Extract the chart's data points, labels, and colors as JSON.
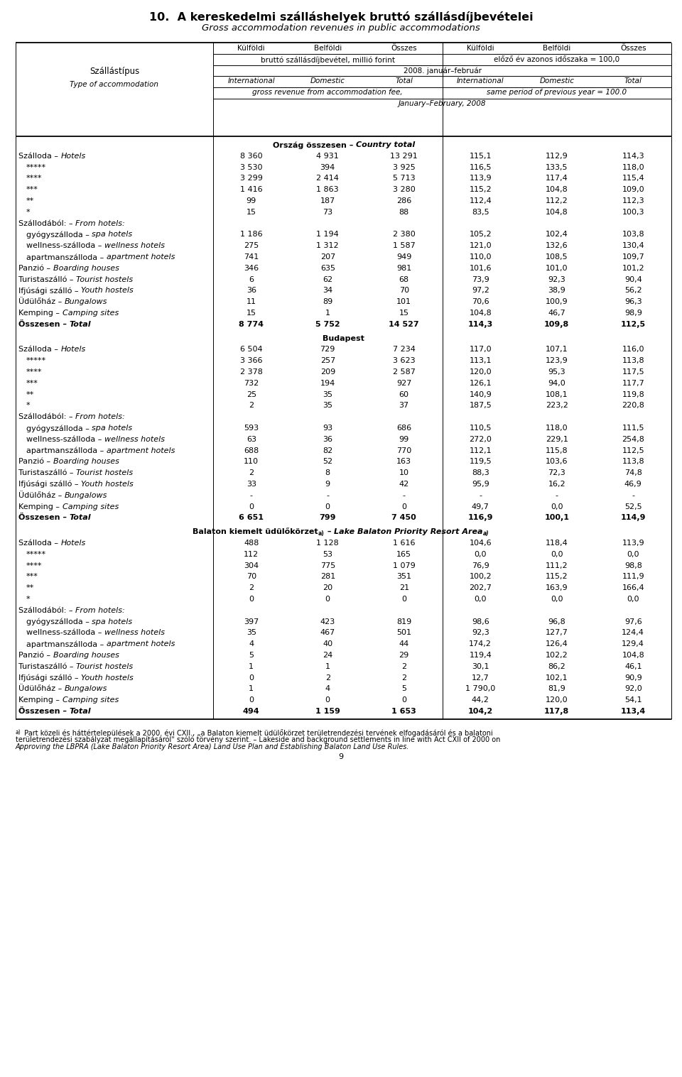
{
  "title1": "10.  A kereskedelmi szálláshelyek bruttó szállásdíjbevételei",
  "title2": "Gross accommodation revenues in public accommodations",
  "col_header_row1": [
    "Külföldi",
    "Belföldi",
    "Összes",
    "Külföldi",
    "Belföldi",
    "Összes"
  ],
  "col_header_row2_left": "bruttó szállásdíjbevétel, millió forint",
  "col_header_row2_right": "előző év azonos időszaka = 100,0",
  "col_header_row3": "2008. január–február",
  "col_header_row4_left": [
    "International",
    "Domestic",
    "Total"
  ],
  "col_header_row4_right": [
    "International",
    "Domestic",
    "Total"
  ],
  "col_header_row5_left": "gross revenue from accommodation fee,",
  "col_header_row5_right": "same period of previous year = 100.0",
  "col_header_row6": "January–February, 2008",
  "left_col_label": "Szállástípus",
  "left_col_label2": "Type of accommodation",
  "sections": [
    {
      "section_header": "Ország összesen – Country total",
      "section_header_italic_after": "Country total",
      "rows": [
        {
          "hu": "Szálloda",
          "en": "Hotels",
          "indent": 0,
          "bold": false,
          "values": [
            "8 360",
            "4 931",
            "13 291",
            "115,1",
            "112,9",
            "114,3"
          ],
          "header_only": false
        },
        {
          "hu": "*****",
          "en": "",
          "indent": 1,
          "bold": false,
          "values": [
            "3 530",
            "394",
            "3 925",
            "116,5",
            "133,5",
            "118,0"
          ],
          "header_only": false
        },
        {
          "hu": "****",
          "en": "",
          "indent": 1,
          "bold": false,
          "values": [
            "3 299",
            "2 414",
            "5 713",
            "113,9",
            "117,4",
            "115,4"
          ],
          "header_only": false
        },
        {
          "hu": "***",
          "en": "",
          "indent": 1,
          "bold": false,
          "values": [
            "1 416",
            "1 863",
            "3 280",
            "115,2",
            "104,8",
            "109,0"
          ],
          "header_only": false
        },
        {
          "hu": "**",
          "en": "",
          "indent": 1,
          "bold": false,
          "values": [
            "99",
            "187",
            "286",
            "112,4",
            "112,2",
            "112,3"
          ],
          "header_only": false
        },
        {
          "hu": "*",
          "en": "",
          "indent": 1,
          "bold": false,
          "values": [
            "15",
            "73",
            "88",
            "83,5",
            "104,8",
            "100,3"
          ],
          "header_only": false
        },
        {
          "hu": "Szállodából:",
          "en": "From hotels:",
          "indent": 0,
          "bold": false,
          "values": [
            "",
            "",
            "",
            "",
            "",
            ""
          ],
          "header_only": true
        },
        {
          "hu": "gyógyszálloda",
          "en": "spa hotels",
          "indent": 1,
          "bold": false,
          "values": [
            "1 186",
            "1 194",
            "2 380",
            "105,2",
            "102,4",
            "103,8"
          ],
          "header_only": false
        },
        {
          "hu": "wellness-szálloda",
          "en": "wellness hotels",
          "indent": 1,
          "bold": false,
          "values": [
            "275",
            "1 312",
            "1 587",
            "121,0",
            "132,6",
            "130,4"
          ],
          "header_only": false
        },
        {
          "hu": "apartmanszálloda",
          "en": "apartment hotels",
          "indent": 1,
          "bold": false,
          "values": [
            "741",
            "207",
            "949",
            "110,0",
            "108,5",
            "109,7"
          ],
          "header_only": false
        },
        {
          "hu": "Panzió",
          "en": "Boarding houses",
          "indent": 0,
          "bold": false,
          "values": [
            "346",
            "635",
            "981",
            "101,6",
            "101,0",
            "101,2"
          ],
          "header_only": false
        },
        {
          "hu": "Turistaszálló",
          "en": "Tourist hostels",
          "indent": 0,
          "bold": false,
          "values": [
            "6",
            "62",
            "68",
            "73,9",
            "92,3",
            "90,4"
          ],
          "header_only": false
        },
        {
          "hu": "Ifjúsági szálló",
          "en": "Youth hostels",
          "indent": 0,
          "bold": false,
          "values": [
            "36",
            "34",
            "70",
            "97,2",
            "38,9",
            "56,2"
          ],
          "header_only": false
        },
        {
          "hu": "Üdülőház",
          "en": "Bungalows",
          "indent": 0,
          "bold": false,
          "values": [
            "11",
            "89",
            "101",
            "70,6",
            "100,9",
            "96,3"
          ],
          "header_only": false
        },
        {
          "hu": "Kemping",
          "en": "Camping sites",
          "indent": 0,
          "bold": false,
          "values": [
            "15",
            "1",
            "15",
            "104,8",
            "46,7",
            "98,9"
          ],
          "header_only": false
        },
        {
          "hu": "Összesen",
          "en": "Total",
          "indent": 0,
          "bold": true,
          "values": [
            "8 774",
            "5 752",
            "14 527",
            "114,3",
            "109,8",
            "112,5"
          ],
          "header_only": false
        }
      ]
    },
    {
      "section_header": "Budapest",
      "section_header_italic_after": "",
      "rows": [
        {
          "hu": "Szálloda",
          "en": "Hotels",
          "indent": 0,
          "bold": false,
          "values": [
            "6 504",
            "729",
            "7 234",
            "117,0",
            "107,1",
            "116,0"
          ],
          "header_only": false
        },
        {
          "hu": "*****",
          "en": "",
          "indent": 1,
          "bold": false,
          "values": [
            "3 366",
            "257",
            "3 623",
            "113,1",
            "123,9",
            "113,8"
          ],
          "header_only": false
        },
        {
          "hu": "****",
          "en": "",
          "indent": 1,
          "bold": false,
          "values": [
            "2 378",
            "209",
            "2 587",
            "120,0",
            "95,3",
            "117,5"
          ],
          "header_only": false
        },
        {
          "hu": "***",
          "en": "",
          "indent": 1,
          "bold": false,
          "values": [
            "732",
            "194",
            "927",
            "126,1",
            "94,0",
            "117,7"
          ],
          "header_only": false
        },
        {
          "hu": "**",
          "en": "",
          "indent": 1,
          "bold": false,
          "values": [
            "25",
            "35",
            "60",
            "140,9",
            "108,1",
            "119,8"
          ],
          "header_only": false
        },
        {
          "hu": "*",
          "en": "",
          "indent": 1,
          "bold": false,
          "values": [
            "2",
            "35",
            "37",
            "187,5",
            "223,2",
            "220,8"
          ],
          "header_only": false
        },
        {
          "hu": "Szállodából:",
          "en": "From hotels:",
          "indent": 0,
          "bold": false,
          "values": [
            "",
            "",
            "",
            "",
            "",
            ""
          ],
          "header_only": true
        },
        {
          "hu": "gyógyszálloda",
          "en": "spa hotels",
          "indent": 1,
          "bold": false,
          "values": [
            "593",
            "93",
            "686",
            "110,5",
            "118,0",
            "111,5"
          ],
          "header_only": false
        },
        {
          "hu": "wellness-szálloda",
          "en": "wellness hotels",
          "indent": 1,
          "bold": false,
          "values": [
            "63",
            "36",
            "99",
            "272,0",
            "229,1",
            "254,8"
          ],
          "header_only": false
        },
        {
          "hu": "apartmanszálloda",
          "en": "apartment hotels",
          "indent": 1,
          "bold": false,
          "values": [
            "688",
            "82",
            "770",
            "112,1",
            "115,8",
            "112,5"
          ],
          "header_only": false
        },
        {
          "hu": "Panzió",
          "en": "Boarding houses",
          "indent": 0,
          "bold": false,
          "values": [
            "110",
            "52",
            "163",
            "119,5",
            "103,6",
            "113,8"
          ],
          "header_only": false
        },
        {
          "hu": "Turistaszálló",
          "en": "Tourist hostels",
          "indent": 0,
          "bold": false,
          "values": [
            "2",
            "8",
            "10",
            "88,3",
            "72,3",
            "74,8"
          ],
          "header_only": false
        },
        {
          "hu": "Ifjúsági szálló",
          "en": "Youth hostels",
          "indent": 0,
          "bold": false,
          "values": [
            "33",
            "9",
            "42",
            "95,9",
            "16,2",
            "46,9"
          ],
          "header_only": false
        },
        {
          "hu": "Üdülőház",
          "en": "Bungalows",
          "indent": 0,
          "bold": false,
          "values": [
            "-",
            "-",
            "-",
            "-",
            "-",
            "-"
          ],
          "header_only": false
        },
        {
          "hu": "Kemping",
          "en": "Camping sites",
          "indent": 0,
          "bold": false,
          "values": [
            "0",
            "0",
            "0",
            "49,7",
            "0,0",
            "52,5"
          ],
          "header_only": false
        },
        {
          "hu": "Összesen",
          "en": "Total",
          "indent": 0,
          "bold": true,
          "values": [
            "6 651",
            "799",
            "7 450",
            "116,9",
            "100,1",
            "114,9"
          ],
          "header_only": false
        }
      ]
    },
    {
      "section_header": "Balaton kiemelt üdülőkörzetâ¾ – Lake Balaton Priority Resort Areaâ¾",
      "section_header_italic_after": "Lake Balaton Priority Resort Area",
      "section_header_special": true,
      "rows": [
        {
          "hu": "Szálloda",
          "en": "Hotels",
          "indent": 0,
          "bold": false,
          "values": [
            "488",
            "1 128",
            "1 616",
            "104,6",
            "118,4",
            "113,9"
          ],
          "header_only": false
        },
        {
          "hu": "*****",
          "en": "",
          "indent": 1,
          "bold": false,
          "values": [
            "112",
            "53",
            "165",
            "0,0",
            "0,0",
            "0,0"
          ],
          "header_only": false
        },
        {
          "hu": "****",
          "en": "",
          "indent": 1,
          "bold": false,
          "values": [
            "304",
            "775",
            "1 079",
            "76,9",
            "111,2",
            "98,8"
          ],
          "header_only": false
        },
        {
          "hu": "***",
          "en": "",
          "indent": 1,
          "bold": false,
          "values": [
            "70",
            "281",
            "351",
            "100,2",
            "115,2",
            "111,9"
          ],
          "header_only": false
        },
        {
          "hu": "**",
          "en": "",
          "indent": 1,
          "bold": false,
          "values": [
            "2",
            "20",
            "21",
            "202,7",
            "163,9",
            "166,4"
          ],
          "header_only": false
        },
        {
          "hu": "*",
          "en": "",
          "indent": 1,
          "bold": false,
          "values": [
            "0",
            "0",
            "0",
            "0,0",
            "0,0",
            "0,0"
          ],
          "header_only": false
        },
        {
          "hu": "Szállodából:",
          "en": "From hotels:",
          "indent": 0,
          "bold": false,
          "values": [
            "",
            "",
            "",
            "",
            "",
            ""
          ],
          "header_only": true
        },
        {
          "hu": "gyógyszálloda",
          "en": "spa hotels",
          "indent": 1,
          "bold": false,
          "values": [
            "397",
            "423",
            "819",
            "98,6",
            "96,8",
            "97,6"
          ],
          "header_only": false
        },
        {
          "hu": "wellness-szálloda",
          "en": "wellness hotels",
          "indent": 1,
          "bold": false,
          "values": [
            "35",
            "467",
            "501",
            "92,3",
            "127,7",
            "124,4"
          ],
          "header_only": false
        },
        {
          "hu": "apartmanszálloda",
          "en": "apartment hotels",
          "indent": 1,
          "bold": false,
          "values": [
            "4",
            "40",
            "44",
            "174,2",
            "126,4",
            "129,4"
          ],
          "header_only": false
        },
        {
          "hu": "Panzió",
          "en": "Boarding houses",
          "indent": 0,
          "bold": false,
          "values": [
            "5",
            "24",
            "29",
            "119,4",
            "102,2",
            "104,8"
          ],
          "header_only": false
        },
        {
          "hu": "Turistaszálló",
          "en": "Tourist hostels",
          "indent": 0,
          "bold": false,
          "values": [
            "1",
            "1",
            "2",
            "30,1",
            "86,2",
            "46,1"
          ],
          "header_only": false
        },
        {
          "hu": "Ifjúsági szálló",
          "en": "Youth hostels",
          "indent": 0,
          "bold": false,
          "values": [
            "0",
            "2",
            "2",
            "12,7",
            "102,1",
            "90,9"
          ],
          "header_only": false
        },
        {
          "hu": "Üdülőház",
          "en": "Bungalows",
          "indent": 0,
          "bold": false,
          "values": [
            "1",
            "4",
            "5",
            "1 790,0",
            "81,9",
            "92,0"
          ],
          "header_only": false
        },
        {
          "hu": "Kemping",
          "en": "Camping sites",
          "indent": 0,
          "bold": false,
          "values": [
            "0",
            "0",
            "0",
            "44,2",
            "120,0",
            "54,1"
          ],
          "header_only": false
        },
        {
          "hu": "Összesen",
          "en": "Total",
          "indent": 0,
          "bold": true,
          "values": [
            "494",
            "1 159",
            "1 653",
            "104,2",
            "117,8",
            "113,4"
          ],
          "header_only": false
        }
      ]
    }
  ],
  "footnote_a": "a)",
  "footnote_line1": " Part közeli és háttértelepülések a 2000. évi CXII., „a Balaton kiemelt üdülőkörzet területrendezési tervének elfogadásáról és a balatoni",
  "footnote_line2": "területrendezési szabályzat megállapításáról\" szóló törvény szerint. – Lakeside and background settlements in line with Act CXII of 2000 on",
  "footnote_line3": "Approving the LBPRA (Lake Balaton Priority Resort Area) Land Use Plan and Establishing Balaton Land Use Rules.",
  "page_num": "9",
  "LM": 22,
  "RM": 945,
  "COL0": 300,
  "HT": 60,
  "HB": 192,
  "RH": 15.8,
  "FS": 8.0,
  "FS_TITLE": 11.5,
  "FS_SUBTITLE": 9.5,
  "FS_SMALL": 7.5,
  "FS_FOOT": 7.0
}
